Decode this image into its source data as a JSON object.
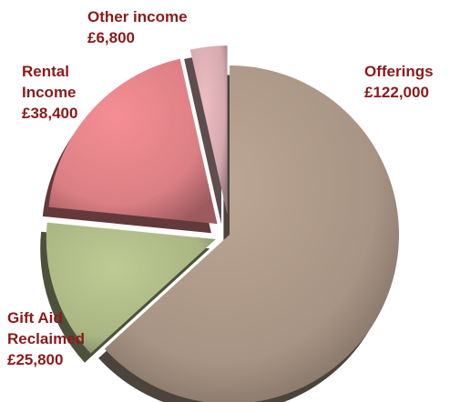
{
  "chart_data": {
    "type": "pie",
    "title": "",
    "exploded": true,
    "style": "3d",
    "label_color": "#8b1a1a",
    "slices": [
      {
        "name": "Offerings",
        "value": 122000,
        "value_label": "£122,000",
        "color": "#a89484",
        "label_lines": [
          "Offerings"
        ]
      },
      {
        "name": "Gift Aid Reclaimed",
        "value": 25800,
        "value_label": "£25,800",
        "color": "#aab583",
        "label_lines": [
          "Gift Aid",
          "Reclaimed"
        ]
      },
      {
        "name": "Rental Income",
        "value": 38400,
        "value_label": "£38,400",
        "color": "#db7f84",
        "label_lines": [
          "Rental",
          "Income"
        ]
      },
      {
        "name": "Other income",
        "value": 6800,
        "value_label": "£6,800",
        "color": "#d4a9ad",
        "label_lines": [
          "Other income"
        ]
      }
    ]
  }
}
